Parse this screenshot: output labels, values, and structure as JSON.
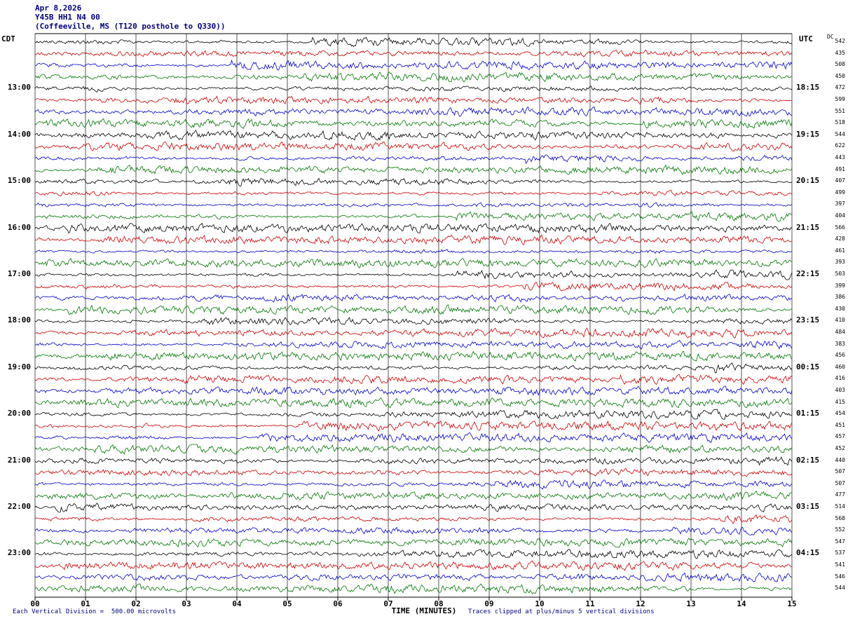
{
  "header": {
    "line1": "Apr 8,2026",
    "line2": "Y45B HH1 N4 00",
    "line3": "(Coffeeville, MS (T120 posthole to Q330))"
  },
  "corner": {
    "left_timezone": "CDT",
    "right_timezone": "UTC",
    "dc_column": "DC"
  },
  "footer": {
    "scale_note": "Each Vertical Division =  500.00 microvolts",
    "xlabel": "TIME (MINUTES)",
    "clip_note": "Traces clipped at plus/minus 5 vertical divisions"
  },
  "chart_data": {
    "type": "line",
    "kind": "seismogram-heliplot",
    "title": "Y45B HH1 N4 00 (Coffeeville, MS (T120 posthole to Q330))",
    "date": "Apr 8,2026",
    "xlabel": "TIME (MINUTES)",
    "x_range_minutes": [
      0,
      15
    ],
    "x_tick_labels": [
      "00",
      "01",
      "02",
      "03",
      "04",
      "05",
      "06",
      "07",
      "08",
      "09",
      "10",
      "11",
      "12",
      "13",
      "14",
      "15"
    ],
    "rows": 48,
    "minutes_per_row": 15,
    "rows_per_hour": 4,
    "trace_color_cycle": [
      "#000000",
      "#cc0000",
      "#0000cc",
      "#007700"
    ],
    "left_hour_labels_cdt": [
      "13:00",
      "14:00",
      "15:00",
      "16:00",
      "17:00",
      "18:00",
      "19:00",
      "20:00",
      "21:00",
      "22:00",
      "23:00"
    ],
    "right_hour_labels_utc": [
      "18:15",
      "19:15",
      "20:15",
      "21:15",
      "22:15",
      "23:15",
      "00:15",
      "01:15",
      "02:15",
      "03:15",
      "04:15"
    ],
    "dc_values": [
      542,
      435,
      508,
      450,
      472,
      599,
      551,
      518,
      544,
      622,
      443,
      491,
      407,
      499,
      397,
      404,
      566,
      428,
      461,
      393,
      503,
      399,
      386,
      430,
      410,
      484,
      383,
      456,
      460,
      416,
      403,
      415,
      454,
      451,
      457,
      452,
      440,
      507,
      507,
      477,
      514,
      568,
      552,
      547,
      537,
      541,
      546,
      544
    ],
    "vertical_division_microvolts": 500.0,
    "clip_divisions": 5,
    "grid": "vertical gridlines at each minute",
    "note": "Each row is a 15-minute continuous seismic trace; waveform is unlabeled broadband noise with intermittent bursts"
  }
}
